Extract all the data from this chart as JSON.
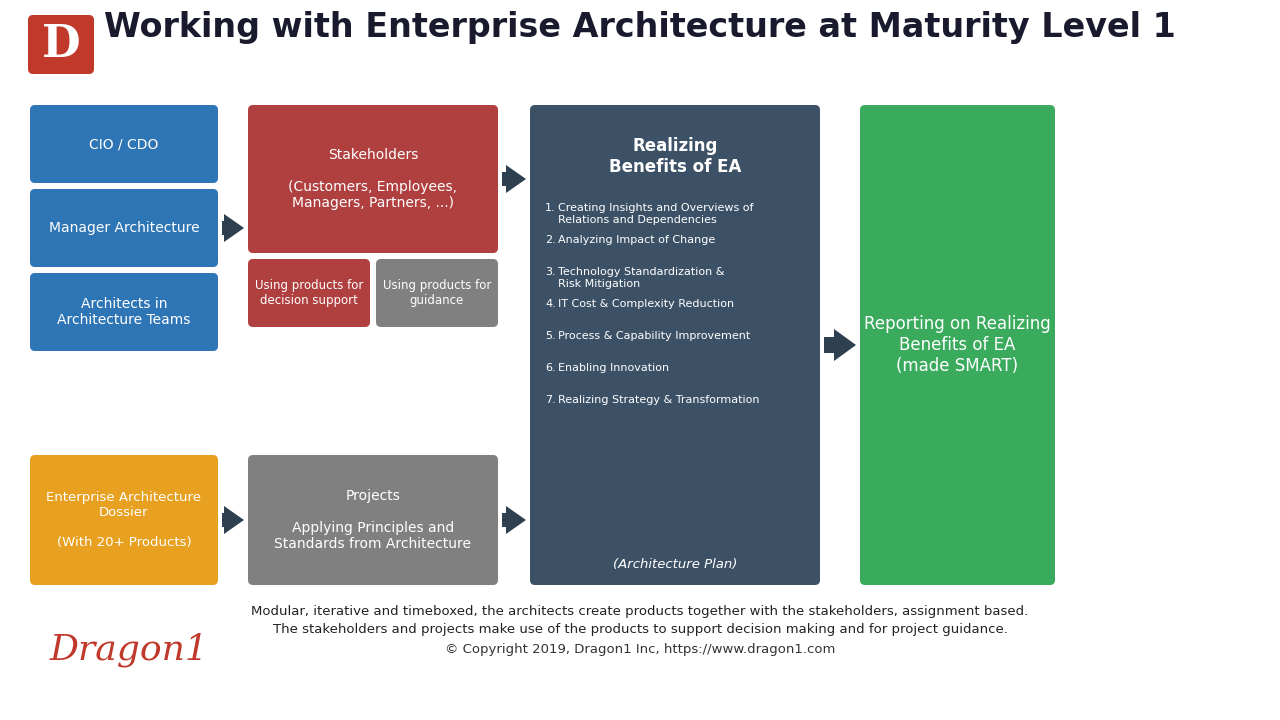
{
  "title": "Working with Enterprise Architecture at Maturity Level 1",
  "title_fontsize": 24,
  "bg_color": "#ffffff",
  "logo_color": "#c0392b",
  "logo_text": "D",
  "footer_brand": "Dragon1",
  "footer_copy": "© Copyright 2019, Dragon1 Inc, https://www.dragon1.com",
  "footer_note1": "Modular, iterative and timeboxed, the architects create products together with the stakeholders, assignment based.",
  "footer_note2": "The stakeholders and projects make use of the products to support decision making and for project guidance.",
  "col1_boxes": [
    {
      "text": "CIO / CDO",
      "color": "#2e75b6"
    },
    {
      "text": "Manager Architecture",
      "color": "#2e75b6"
    },
    {
      "text": "Architects in\nArchitecture Teams",
      "color": "#2e75b6"
    },
    {
      "text": "Enterprise Architecture\nDossier\n\n(With 20+ Products)",
      "color": "#e8a020"
    }
  ],
  "col2_red_color": "#b04040",
  "col2_gray_color": "#808080",
  "col2_top_text": "Stakeholders\n\n(Customers, Employees,\nManagers, Partners, ...)",
  "col2_mid_left_text": "Using products for\ndecision support",
  "col2_mid_right_text": "Using products for\nguidance",
  "col2_bot_text": "Projects\n\nApplying Principles and\nStandards from Architecture",
  "col3_color": "#3d5166",
  "col3_title": "Realizing\nBenefits of EA",
  "col3_items": [
    "Creating Insights and Overviews of\nRelations and Dependencies",
    "Analyzing Impact of Change",
    "Technology Standardization &\nRisk Mitigation",
    "IT Cost & Complexity Reduction",
    "Process & Capability Improvement",
    "Enabling Innovation",
    "Realizing Strategy & Transformation"
  ],
  "col3_footer": "(Architecture Plan)",
  "col4_color": "#3aaa5c",
  "col4_text": "Reporting on Realizing\nBenefits of EA\n(made SMART)",
  "arrow_color": "#2e3f50"
}
